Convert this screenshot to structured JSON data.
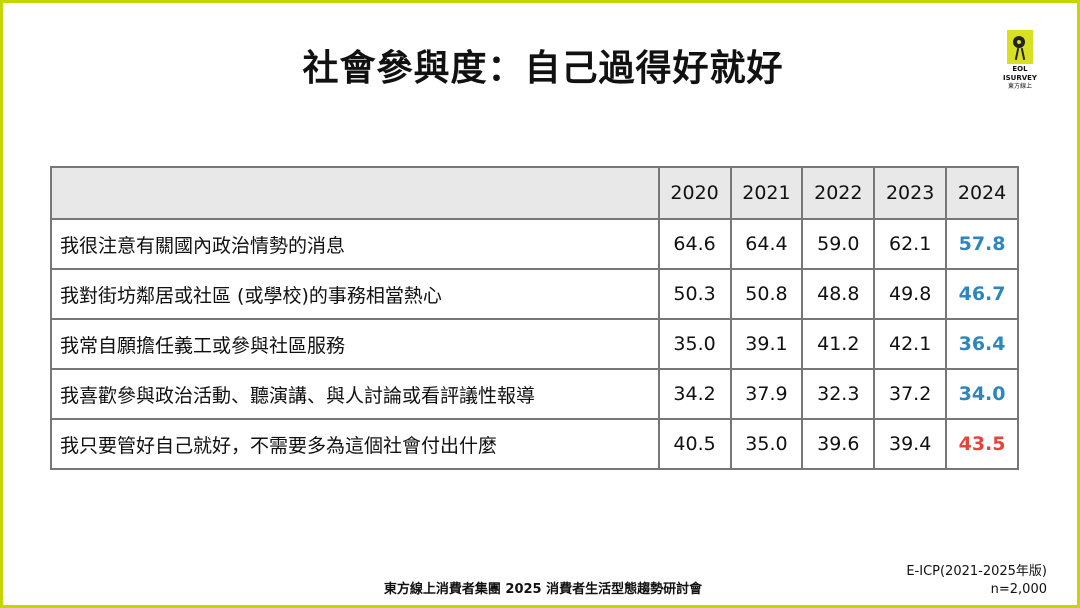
{
  "title": "社會參與度：自己過得好就好",
  "logo": {
    "line1": "EOL",
    "line2": "ISURVEY",
    "line3": "東方線上"
  },
  "table": {
    "years": [
      "2020",
      "2021",
      "2022",
      "2023",
      "2024"
    ],
    "rows": [
      {
        "label": "我很注意有關國內政治情勢的消息",
        "values": [
          "64.6",
          "64.4",
          "59.0",
          "62.1",
          "57.8"
        ]
      },
      {
        "label": "我對街坊鄰居或社區 (或學校)的事務相當熱心",
        "values": [
          "50.3",
          "50.8",
          "48.8",
          "49.8",
          "46.7"
        ]
      },
      {
        "label": "我常自願擔任義工或參與社區服務",
        "values": [
          "35.0",
          "39.1",
          "41.2",
          "42.1",
          "36.4"
        ]
      },
      {
        "label": "我喜歡參與政治活動、聽演講、與人討論或看評議性報導",
        "values": [
          "34.2",
          "37.9",
          "32.3",
          "37.2",
          "34.0"
        ]
      },
      {
        "label": "我只要管好自己就好，不需要多為這個社會付出什麼",
        "values": [
          "40.5",
          "35.0",
          "39.6",
          "39.4",
          "43.5"
        ]
      }
    ]
  },
  "footer": "東方線上消費者集團 2025 消費者生活型態趨勢研討會",
  "source": {
    "line1": "E-ICP(2021-2025年版)",
    "line2": "n=2,000"
  },
  "colors": {
    "border": "#c5d600",
    "decline": "#2e86c1",
    "increase": "#e8433b",
    "header_bg": "#e8e8e8"
  }
}
